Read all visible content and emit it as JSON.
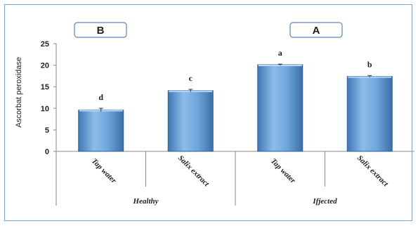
{
  "chart_data": {
    "type": "bar",
    "ylabel": "Ascorbat peroxidase",
    "ylim": [
      0,
      25
    ],
    "yticks": [
      0,
      5,
      10,
      15,
      20,
      25
    ],
    "categories": [
      "Tap water",
      "Salix extract",
      "Tap water",
      "Salix extract"
    ],
    "groups": [
      "Healthy",
      "Ifjected"
    ],
    "values": [
      9.6,
      14.1,
      20.1,
      17.4
    ],
    "errors": [
      0.4,
      0.3,
      0.15,
      0.2
    ],
    "significance_letters": [
      "d",
      "c",
      "a",
      "b"
    ],
    "panel_labels": [
      "B",
      "A"
    ],
    "bar_color": "#5b9bd5",
    "grid": false
  }
}
